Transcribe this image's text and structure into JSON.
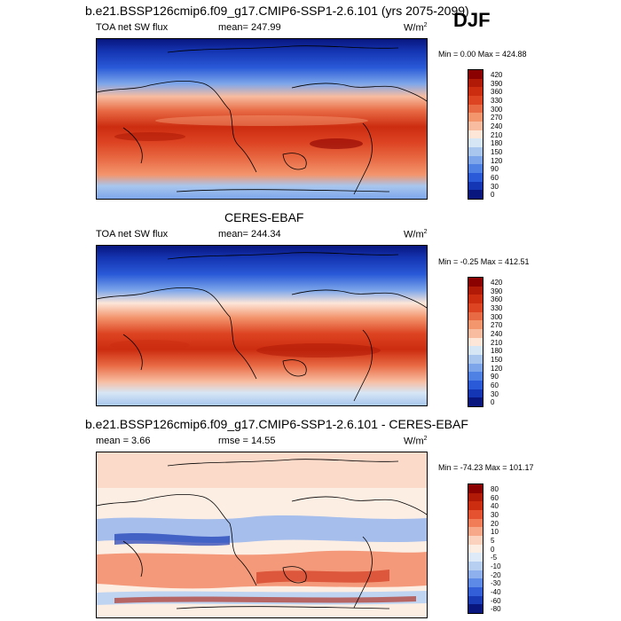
{
  "season": "DJF",
  "panel1": {
    "title": "b.e21.BSSP126cmip6.f09_g17.CMIP6-SSP1-2.6.101 (yrs 2075-2099)",
    "variable": "TOA net SW flux",
    "mean_label": "mean= 247.99",
    "units": "W/m",
    "units_sup": "2",
    "minmax": "Min =   0.00 Max = 424.88",
    "colorbar_levels": [
      "420",
      "390",
      "360",
      "330",
      "300",
      "270",
      "240",
      "210",
      "180",
      "150",
      "120",
      "90",
      "60",
      "30",
      "0"
    ]
  },
  "panel2": {
    "title": "CERES-EBAF",
    "variable": "TOA net SW flux",
    "mean_label": "mean= 244.34",
    "units": "W/m",
    "units_sup": "2",
    "minmax": "Min =  -0.25 Max = 412.51",
    "colorbar_levels": [
      "420",
      "390",
      "360",
      "330",
      "300",
      "270",
      "240",
      "210",
      "180",
      "150",
      "120",
      "90",
      "60",
      "30",
      "0"
    ]
  },
  "panel3": {
    "title": "b.e21.BSSP126cmip6.f09_g17.CMIP6-SSP1-2.6.101 - CERES-EBAF",
    "mean_label": "mean =   3.66",
    "rmse_label": "rmse =  14.55",
    "units": "W/m",
    "units_sup": "2",
    "minmax": "Min = -74.23 Max = 101.17",
    "colorbar_levels": [
      "80",
      "60",
      "40",
      "30",
      "20",
      "10",
      "5",
      "0",
      "-5",
      "-10",
      "-20",
      "-30",
      "-40",
      "-60",
      "-80"
    ]
  },
  "colors": {
    "abs_scale": [
      "#8b0000",
      "#b01a06",
      "#cc2c10",
      "#dd4422",
      "#e86a44",
      "#f3956d",
      "#f8bca0",
      "#fde6d8",
      "#d7e6f5",
      "#a8c6ee",
      "#7da6ea",
      "#4f80e4",
      "#2a5ad8",
      "#1536b4",
      "#08167e"
    ],
    "diff_scale": [
      "#8b0000",
      "#b01a06",
      "#cc2c10",
      "#e45230",
      "#f07d58",
      "#f6a888",
      "#fad2be",
      "#fdeee4",
      "#dfeaf8",
      "#b7d0f2",
      "#8eb1ee",
      "#5d8ae6",
      "#3360d8",
      "#1a3bb6",
      "#08167e"
    ]
  }
}
